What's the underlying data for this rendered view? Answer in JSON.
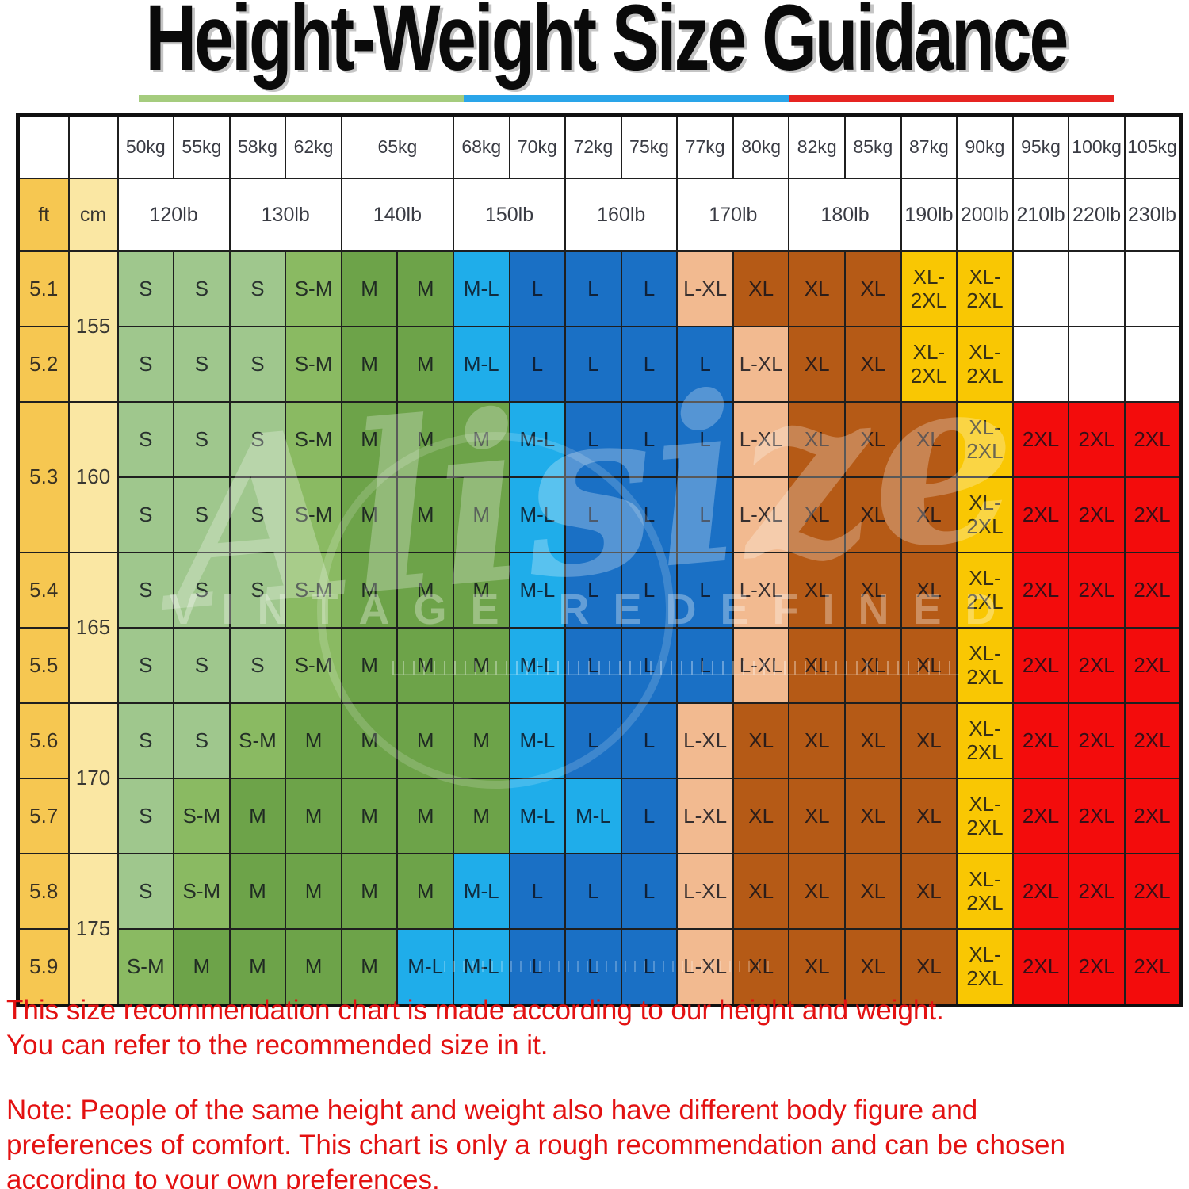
{
  "title": "Height-Weight Size Guidance",
  "colors": {
    "title_text": "#0a0a0a",
    "accent_green": "#a5cc7e",
    "accent_blue": "#2aa5e9",
    "accent_red": "#e62421",
    "grid_line": "#1f1f1f",
    "ft_column": "#f6c751",
    "cm_column": "#fae7a3",
    "header_bg": "#ffffff",
    "note_red": "#e31111",
    "sizes": {
      "S": "#9fc78d",
      "S-M": "#8aba62",
      "M": "#6da349",
      "M-L": "#1fadea",
      "L": "#1a70c5",
      "L-XL": "#f2ba90",
      "XL": "#b55a16",
      "XL-2XL": "#f9c703",
      "2XL": "#f30c0c",
      "": "#ffffff"
    }
  },
  "watermark": {
    "script": "Alisize",
    "tagline": "VINTAGE REDEFINED"
  },
  "chart_data": {
    "type": "table",
    "title": "Height-Weight Size Guidance",
    "corner": {
      "ft": "ft",
      "cm": "cm"
    },
    "kg_headers": [
      {
        "label": "50kg",
        "span": 1
      },
      {
        "label": "55kg",
        "span": 1
      },
      {
        "label": "58kg",
        "span": 1
      },
      {
        "label": "62kg",
        "span": 1
      },
      {
        "label": "65kg",
        "span": 2
      },
      {
        "label": "68kg",
        "span": 1
      },
      {
        "label": "70kg",
        "span": 1
      },
      {
        "label": "72kg",
        "span": 1
      },
      {
        "label": "75kg",
        "span": 1
      },
      {
        "label": "77kg",
        "span": 1
      },
      {
        "label": "80kg",
        "span": 1
      },
      {
        "label": "82kg",
        "span": 1
      },
      {
        "label": "85kg",
        "span": 1
      },
      {
        "label": "87kg",
        "span": 1
      },
      {
        "label": "90kg",
        "span": 1
      },
      {
        "label": "95kg",
        "span": 1
      },
      {
        "label": "100kg",
        "span": 1
      },
      {
        "label": "105kg",
        "span": 1
      }
    ],
    "lb_headers": [
      {
        "label": "120lb",
        "span": 2
      },
      {
        "label": "130lb",
        "span": 2
      },
      {
        "label": "140lb",
        "span": 2
      },
      {
        "label": "150lb",
        "span": 2
      },
      {
        "label": "160lb",
        "span": 2
      },
      {
        "label": "170lb",
        "span": 2
      },
      {
        "label": "180lb",
        "span": 2
      },
      {
        "label": "190lb",
        "span": 1
      },
      {
        "label": "200lb",
        "span": 1
      },
      {
        "label": "210lb",
        "span": 1
      },
      {
        "label": "220lb",
        "span": 1
      },
      {
        "label": "230lb",
        "span": 1
      }
    ],
    "row_groups": [
      {
        "cm": "155",
        "ft_merged": false,
        "rows": [
          {
            "ft": "5.1",
            "cells": [
              "S",
              "S",
              "S",
              "S-M",
              "M",
              "M",
              "M-L",
              "L",
              "L",
              "L",
              "L-XL",
              "XL",
              "XL",
              "XL",
              "XL-2XL",
              "XL-2XL",
              "",
              "",
              ""
            ]
          },
          {
            "ft": "5.2",
            "cells": [
              "S",
              "S",
              "S",
              "S-M",
              "M",
              "M",
              "M-L",
              "L",
              "L",
              "L",
              "L",
              "L-XL",
              "XL",
              "XL",
              "XL-2XL",
              "XL-2XL",
              "",
              "",
              ""
            ]
          }
        ]
      },
      {
        "cm": "160",
        "ft_merged": true,
        "ft": "5.3",
        "rows": [
          {
            "cells": [
              "S",
              "S",
              "S",
              "S-M",
              "M",
              "M",
              "M",
              "M-L",
              "L",
              "L",
              "L",
              "L-XL",
              "XL",
              "XL",
              "XL",
              "XL-2XL",
              "2XL",
              "2XL",
              "2XL"
            ]
          },
          {
            "cells": [
              "S",
              "S",
              "S",
              "S-M",
              "M",
              "M",
              "M",
              "M-L",
              "L",
              "L",
              "L",
              "L-XL",
              "XL",
              "XL",
              "XL",
              "XL-2XL",
              "2XL",
              "2XL",
              "2XL"
            ]
          }
        ]
      },
      {
        "cm": "165",
        "ft_merged": false,
        "rows": [
          {
            "ft": "5.4",
            "cells": [
              "S",
              "S",
              "S",
              "S-M",
              "M",
              "M",
              "M",
              "M-L",
              "L",
              "L",
              "L",
              "L-XL",
              "XL",
              "XL",
              "XL",
              "XL-2XL",
              "2XL",
              "2XL",
              "2XL"
            ]
          },
          {
            "ft": "5.5",
            "cells": [
              "S",
              "S",
              "S",
              "S-M",
              "M",
              "M",
              "M",
              "M-L",
              "L",
              "L",
              "L",
              "L-XL",
              "XL",
              "XL",
              "XL",
              "XL-2XL",
              "2XL",
              "2XL",
              "2XL"
            ]
          }
        ]
      },
      {
        "cm": "170",
        "ft_merged": false,
        "rows": [
          {
            "ft": "5.6",
            "cells": [
              "S",
              "S",
              "S-M",
              "M",
              "M",
              "M",
              "M",
              "M-L",
              "L",
              "L",
              "L-XL",
              "XL",
              "XL",
              "XL",
              "XL",
              "XL-2XL",
              "2XL",
              "2XL",
              "2XL"
            ]
          },
          {
            "ft": "5.7",
            "cells": [
              "S",
              "S-M",
              "M",
              "M",
              "M",
              "M",
              "M",
              "M-L",
              "M-L",
              "L",
              "L-XL",
              "XL",
              "XL",
              "XL",
              "XL",
              "XL-2XL",
              "2XL",
              "2XL",
              "2XL"
            ]
          }
        ]
      },
      {
        "cm": "175",
        "ft_merged": false,
        "rows": [
          {
            "ft": "5.8",
            "cells": [
              "S",
              "S-M",
              "M",
              "M",
              "M",
              "M",
              "M-L",
              "L",
              "L",
              "L",
              "L-XL",
              "XL",
              "XL",
              "XL",
              "XL",
              "XL-2XL",
              "2XL",
              "2XL",
              "2XL"
            ]
          },
          {
            "ft": "5.9",
            "cells": [
              "S-M",
              "M",
              "M",
              "M",
              "M",
              "M-L",
              "M-L",
              "L",
              "L",
              "L",
              "L-XL",
              "XL",
              "XL",
              "XL",
              "XL",
              "XL-2XL",
              "2XL",
              "2XL",
              "2XL"
            ]
          }
        ]
      }
    ]
  },
  "notes": {
    "para1": "This size recommendation chart is made according to our height and weight.\nYou can refer to the recommended size in it.",
    "para2": "Note: People of the same height and weight also have different body figure and\npreferences of comfort. This chart is only a rough recommendation and can be chosen\naccording to your own preferences."
  }
}
